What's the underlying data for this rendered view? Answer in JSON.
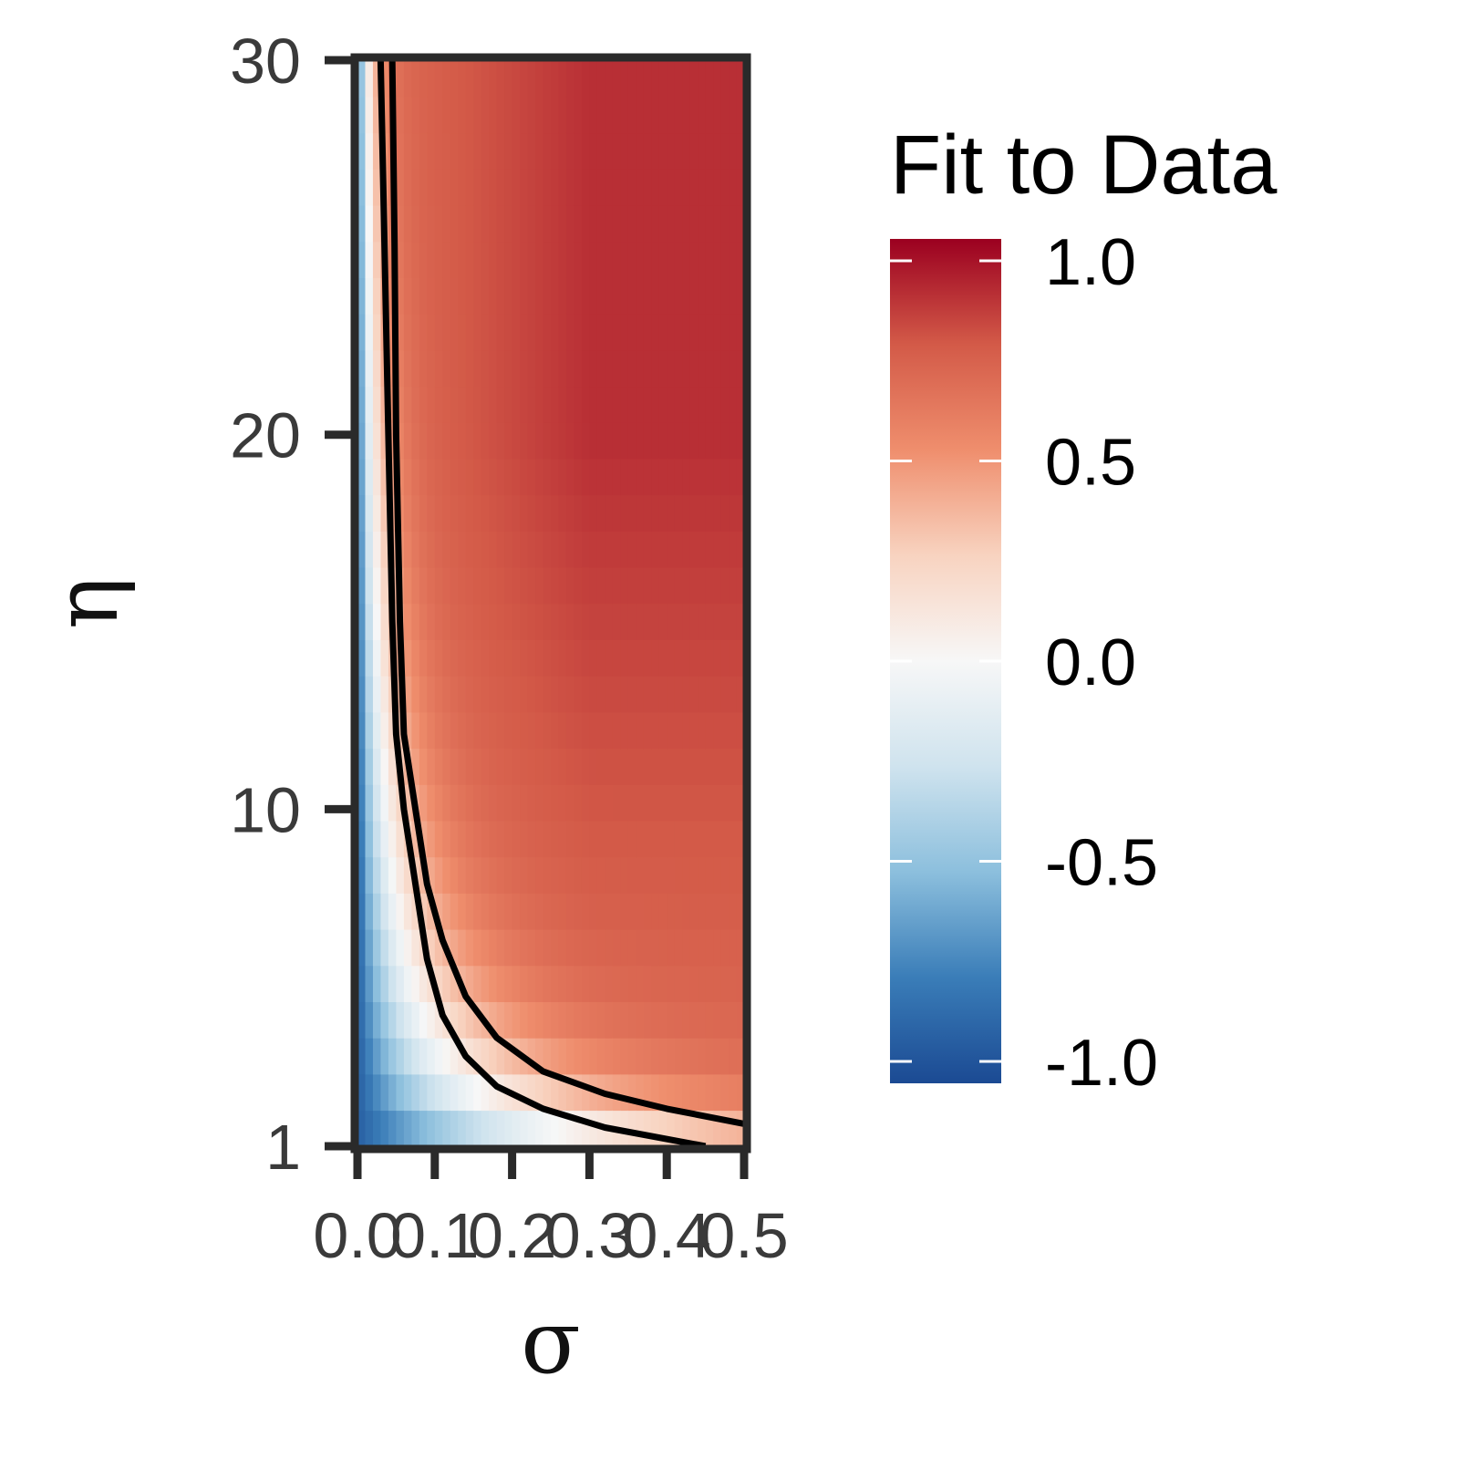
{
  "chart_data": {
    "type": "heatmap",
    "title": "",
    "xlabel": "σ",
    "ylabel": "η",
    "xlim": [
      0.0,
      0.5
    ],
    "ylim": [
      1,
      30
    ],
    "x_ticks": [
      "0.0",
      "0.1",
      "0.2",
      "0.3",
      "0.4",
      "0.5"
    ],
    "y_ticks": [
      "1",
      "10",
      "20",
      "30"
    ],
    "x_tick_values": [
      0.0,
      0.1,
      0.2,
      0.3,
      0.4,
      0.5
    ],
    "y_tick_values": [
      1,
      10,
      20,
      30
    ],
    "colorscale": {
      "title": "Fit to Data",
      "min": -1.0,
      "max": 1.0,
      "ticks": [
        "1.0",
        "0.5",
        "0.0",
        "-0.5",
        "-1.0"
      ],
      "tick_values": [
        1.0,
        0.5,
        0.0,
        -0.5,
        -1.0
      ],
      "stops": [
        {
          "value": -1.0,
          "color": "#1b4a93"
        },
        {
          "value": -0.75,
          "color": "#3a7db8"
        },
        {
          "value": -0.5,
          "color": "#8cbfdd"
        },
        {
          "value": -0.25,
          "color": "#cfe3ee"
        },
        {
          "value": 0.0,
          "color": "#f7f7f7"
        },
        {
          "value": 0.25,
          "color": "#f8d3c0"
        },
        {
          "value": 0.5,
          "color": "#ef8e6d"
        },
        {
          "value": 0.75,
          "color": "#d35a48"
        },
        {
          "value": 1.0,
          "color": "#9b0020"
        }
      ]
    },
    "grid": false,
    "legend_position": "right",
    "contour_lines": [
      {
        "points": [
          [
            0.03,
            30
          ],
          [
            0.035,
            25
          ],
          [
            0.04,
            20
          ],
          [
            0.045,
            15
          ],
          [
            0.05,
            12
          ],
          [
            0.06,
            10
          ],
          [
            0.075,
            8
          ],
          [
            0.09,
            6
          ],
          [
            0.11,
            4.5
          ],
          [
            0.14,
            3.4
          ],
          [
            0.18,
            2.6
          ],
          [
            0.24,
            2.0
          ],
          [
            0.32,
            1.5
          ],
          [
            0.45,
            1.0
          ]
        ]
      },
      {
        "points": [
          [
            0.045,
            30
          ],
          [
            0.048,
            25
          ],
          [
            0.05,
            20
          ],
          [
            0.055,
            15
          ],
          [
            0.06,
            12
          ],
          [
            0.075,
            10
          ],
          [
            0.09,
            8
          ],
          [
            0.11,
            6.5
          ],
          [
            0.14,
            5.0
          ],
          [
            0.18,
            3.9
          ],
          [
            0.24,
            3.0
          ],
          [
            0.32,
            2.4
          ],
          [
            0.4,
            2.0
          ],
          [
            0.5,
            1.6
          ]
        ]
      }
    ]
  }
}
